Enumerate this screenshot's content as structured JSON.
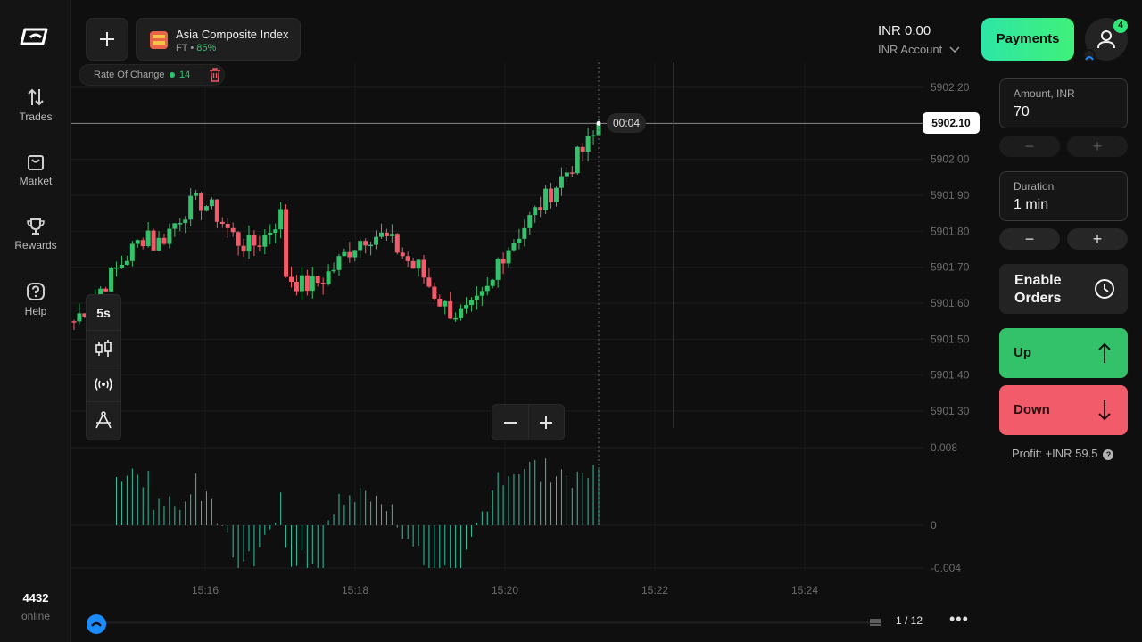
{
  "nav": {
    "items": [
      {
        "label": "Trades",
        "icon": "arrows-up-down-icon"
      },
      {
        "label": "Market",
        "icon": "shopping-bag-icon"
      },
      {
        "label": "Rewards",
        "icon": "trophy-icon"
      },
      {
        "label": "Help",
        "icon": "question-icon"
      }
    ],
    "online_count": "4432",
    "online_label": "online"
  },
  "asset": {
    "name": "Asia Composite Index",
    "type": "FT",
    "separator": "•",
    "payout": "85%"
  },
  "indicator": {
    "name": "Rate Of Change",
    "period": "14"
  },
  "account": {
    "balance": "INR 0.00",
    "account_name": "INR Account"
  },
  "payments_label": "Payments",
  "notifications_count": "4",
  "chart": {
    "timeframe": "5s",
    "timer": "00:04",
    "current_price": "5902.10",
    "price_ticks": [
      "5902.20",
      "5902.00",
      "5901.90",
      "5901.80",
      "5901.70",
      "5901.60",
      "5901.50",
      "5901.40",
      "5901.30"
    ],
    "osc_ticks": [
      "0.008",
      "0",
      "-0.004"
    ],
    "time_ticks": [
      "15:16",
      "15:18",
      "15:20",
      "15:22",
      "15:24"
    ]
  },
  "chart_data": {
    "type": "candlestick",
    "x_labels": [
      "15:16",
      "15:18",
      "15:20",
      "15:22",
      "15:24"
    ],
    "y_range": [
      5901.25,
      5902.25
    ],
    "last_price": 5902.1,
    "oscillator": {
      "name": "Rate Of Change",
      "period": 14,
      "y_range": [
        -0.004,
        0.008
      ]
    }
  },
  "trade": {
    "amount_label": "Amount, INR",
    "amount_value": "70",
    "duration_label": "Duration",
    "duration_value": "1 min",
    "minus": "−",
    "plus": "+",
    "enable_orders_line1": "Enable",
    "enable_orders_line2": "Orders",
    "up_label": "Up",
    "down_label": "Down",
    "profit": "Profit: +INR 59.5",
    "profit_help": "?"
  },
  "pager": "1 / 12",
  "more": "•••",
  "colors": {
    "up": "#33c16a",
    "down": "#f25b6a",
    "accent": "#2ee6a6"
  }
}
